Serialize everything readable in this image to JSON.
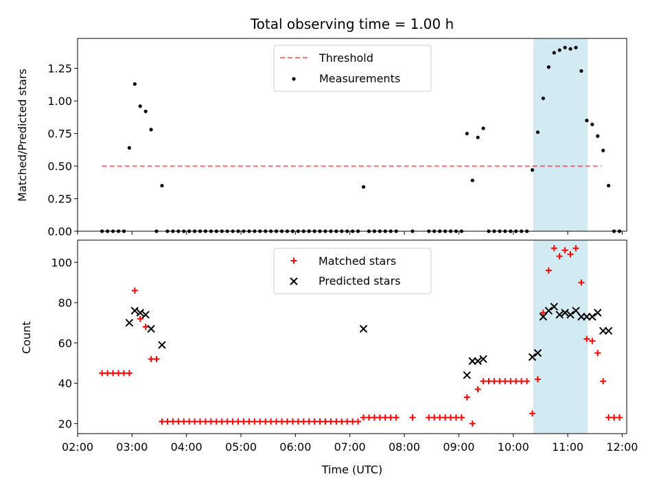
{
  "chart_data": [
    {
      "type": "scatter",
      "title": "Total observing time = 1.00 h",
      "xlabel": "",
      "ylabel": "Matched/Predicted stars",
      "xlim": [
        "02:00",
        "12:05"
      ],
      "ylim": [
        0,
        1.48
      ],
      "yticks": [
        "0.00",
        "0.25",
        "0.50",
        "0.75",
        "1.00",
        "1.25"
      ],
      "highlight_span": {
        "x": [
          "10:22",
          "11:22"
        ],
        "color": "#add8e6"
      },
      "threshold": {
        "name": "Threshold",
        "y": 0.5,
        "x": [
          "02:27",
          "11:37"
        ],
        "color": "#ff0000",
        "style": "dashed"
      },
      "series": [
        {
          "name": "Measurements",
          "color": "#000000",
          "marker": "dot",
          "points": [
            [
              "02:27",
              0
            ],
            [
              "02:33",
              0
            ],
            [
              "02:39",
              0
            ],
            [
              "02:45",
              0
            ],
            [
              "02:51",
              0
            ],
            [
              "02:57",
              0.64
            ],
            [
              "03:03",
              1.13
            ],
            [
              "03:09",
              0.96
            ],
            [
              "03:15",
              0.92
            ],
            [
              "03:21",
              0.78
            ],
            [
              "03:27",
              0
            ],
            [
              "03:33",
              0.35
            ],
            [
              "03:39",
              0
            ],
            [
              "03:45",
              0
            ],
            [
              "03:51",
              0
            ],
            [
              "03:57",
              0
            ],
            [
              "04:03",
              0
            ],
            [
              "04:09",
              0
            ],
            [
              "04:15",
              0
            ],
            [
              "04:21",
              0
            ],
            [
              "04:27",
              0
            ],
            [
              "04:33",
              0
            ],
            [
              "04:39",
              0
            ],
            [
              "04:45",
              0
            ],
            [
              "04:51",
              0
            ],
            [
              "04:57",
              0
            ],
            [
              "05:03",
              0
            ],
            [
              "05:09",
              0
            ],
            [
              "05:15",
              0
            ],
            [
              "05:21",
              0
            ],
            [
              "05:27",
              0
            ],
            [
              "05:33",
              0
            ],
            [
              "05:39",
              0
            ],
            [
              "05:45",
              0
            ],
            [
              "05:51",
              0
            ],
            [
              "05:57",
              0
            ],
            [
              "06:03",
              0
            ],
            [
              "06:09",
              0
            ],
            [
              "06:15",
              0
            ],
            [
              "06:21",
              0
            ],
            [
              "06:27",
              0
            ],
            [
              "06:33",
              0
            ],
            [
              "06:39",
              0
            ],
            [
              "06:45",
              0
            ],
            [
              "06:51",
              0
            ],
            [
              "06:57",
              0
            ],
            [
              "07:03",
              0
            ],
            [
              "07:09",
              0
            ],
            [
              "07:15",
              0.34
            ],
            [
              "07:21",
              0
            ],
            [
              "07:27",
              0
            ],
            [
              "07:33",
              0
            ],
            [
              "07:39",
              0
            ],
            [
              "07:45",
              0
            ],
            [
              "07:51",
              0
            ],
            [
              "08:09",
              0
            ],
            [
              "08:27",
              0
            ],
            [
              "08:33",
              0
            ],
            [
              "08:39",
              0
            ],
            [
              "08:45",
              0
            ],
            [
              "08:51",
              0
            ],
            [
              "08:57",
              0
            ],
            [
              "09:03",
              0
            ],
            [
              "09:09",
              0.75
            ],
            [
              "09:15",
              0.39
            ],
            [
              "09:21",
              0.72
            ],
            [
              "09:27",
              0.79
            ],
            [
              "09:33",
              0
            ],
            [
              "09:39",
              0
            ],
            [
              "09:45",
              0
            ],
            [
              "09:51",
              0
            ],
            [
              "09:57",
              0
            ],
            [
              "10:03",
              0
            ],
            [
              "10:09",
              0
            ],
            [
              "10:15",
              0
            ],
            [
              "10:21",
              0.47
            ],
            [
              "10:27",
              0.76
            ],
            [
              "10:33",
              1.02
            ],
            [
              "10:39",
              1.26
            ],
            [
              "10:45",
              1.37
            ],
            [
              "10:51",
              1.39
            ],
            [
              "10:57",
              1.41
            ],
            [
              "11:03",
              1.4
            ],
            [
              "11:09",
              1.41
            ],
            [
              "11:15",
              1.23
            ],
            [
              "11:21",
              0.85
            ],
            [
              "11:27",
              0.82
            ],
            [
              "11:33",
              0.73
            ],
            [
              "11:39",
              0.62
            ],
            [
              "11:45",
              0.35
            ],
            [
              "11:51",
              0
            ],
            [
              "11:57",
              0
            ]
          ]
        }
      ],
      "legend": {
        "placement": "upper center"
      }
    },
    {
      "type": "scatter",
      "title": "",
      "xlabel": "Time (UTC)",
      "ylabel": "Count",
      "xlim": [
        "02:00",
        "12:05"
      ],
      "ylim": [
        15,
        111
      ],
      "yticks": [
        "20",
        "40",
        "60",
        "80",
        "100"
      ],
      "xticks": [
        "02:00",
        "03:00",
        "04:00",
        "05:00",
        "06:00",
        "07:00",
        "08:00",
        "09:00",
        "10:00",
        "11:00",
        "12:00"
      ],
      "highlight_span": {
        "x": [
          "10:22",
          "11:22"
        ],
        "color": "#add8e6"
      },
      "series": [
        {
          "name": "Matched stars",
          "color": "#ff0000",
          "marker": "plus",
          "points": [
            [
              "02:27",
              45
            ],
            [
              "02:33",
              45
            ],
            [
              "02:39",
              45
            ],
            [
              "02:45",
              45
            ],
            [
              "02:51",
              45
            ],
            [
              "02:57",
              45
            ],
            [
              "03:03",
              86
            ],
            [
              "03:09",
              72
            ],
            [
              "03:15",
              68
            ],
            [
              "03:21",
              52
            ],
            [
              "03:27",
              52
            ],
            [
              "03:33",
              21
            ],
            [
              "03:39",
              21
            ],
            [
              "03:45",
              21
            ],
            [
              "03:51",
              21
            ],
            [
              "03:57",
              21
            ],
            [
              "04:03",
              21
            ],
            [
              "04:09",
              21
            ],
            [
              "04:15",
              21
            ],
            [
              "04:21",
              21
            ],
            [
              "04:27",
              21
            ],
            [
              "04:33",
              21
            ],
            [
              "04:39",
              21
            ],
            [
              "04:45",
              21
            ],
            [
              "04:51",
              21
            ],
            [
              "04:57",
              21
            ],
            [
              "05:03",
              21
            ],
            [
              "05:09",
              21
            ],
            [
              "05:15",
              21
            ],
            [
              "05:21",
              21
            ],
            [
              "05:27",
              21
            ],
            [
              "05:33",
              21
            ],
            [
              "05:39",
              21
            ],
            [
              "05:45",
              21
            ],
            [
              "05:51",
              21
            ],
            [
              "05:57",
              21
            ],
            [
              "06:03",
              21
            ],
            [
              "06:09",
              21
            ],
            [
              "06:15",
              21
            ],
            [
              "06:21",
              21
            ],
            [
              "06:27",
              21
            ],
            [
              "06:33",
              21
            ],
            [
              "06:39",
              21
            ],
            [
              "06:45",
              21
            ],
            [
              "06:51",
              21
            ],
            [
              "06:57",
              21
            ],
            [
              "07:03",
              21
            ],
            [
              "07:09",
              21
            ],
            [
              "07:15",
              23
            ],
            [
              "07:21",
              23
            ],
            [
              "07:27",
              23
            ],
            [
              "07:33",
              23
            ],
            [
              "07:39",
              23
            ],
            [
              "07:45",
              23
            ],
            [
              "07:51",
              23
            ],
            [
              "08:09",
              23
            ],
            [
              "08:27",
              23
            ],
            [
              "08:33",
              23
            ],
            [
              "08:39",
              23
            ],
            [
              "08:45",
              23
            ],
            [
              "08:51",
              23
            ],
            [
              "08:57",
              23
            ],
            [
              "09:03",
              23
            ],
            [
              "09:09",
              33
            ],
            [
              "09:15",
              20
            ],
            [
              "09:21",
              37
            ],
            [
              "09:27",
              41
            ],
            [
              "09:33",
              41
            ],
            [
              "09:39",
              41
            ],
            [
              "09:45",
              41
            ],
            [
              "09:51",
              41
            ],
            [
              "09:57",
              41
            ],
            [
              "10:03",
              41
            ],
            [
              "10:09",
              41
            ],
            [
              "10:15",
              41
            ],
            [
              "10:21",
              25
            ],
            [
              "10:27",
              42
            ],
            [
              "10:33",
              75
            ],
            [
              "10:39",
              96
            ],
            [
              "10:45",
              107
            ],
            [
              "10:51",
              103
            ],
            [
              "10:57",
              106
            ],
            [
              "11:03",
              104
            ],
            [
              "11:09",
              107
            ],
            [
              "11:15",
              90
            ],
            [
              "11:21",
              62
            ],
            [
              "11:27",
              61
            ],
            [
              "11:33",
              55
            ],
            [
              "11:39",
              41
            ],
            [
              "11:45",
              23
            ],
            [
              "11:51",
              23
            ],
            [
              "11:57",
              23
            ]
          ]
        },
        {
          "name": "Predicted stars",
          "color": "#000000",
          "marker": "cross",
          "points": [
            [
              "02:57",
              70
            ],
            [
              "03:03",
              76
            ],
            [
              "03:09",
              75
            ],
            [
              "03:15",
              74
            ],
            [
              "03:21",
              67
            ],
            [
              "03:33",
              59
            ],
            [
              "07:15",
              67
            ],
            [
              "09:09",
              44
            ],
            [
              "09:15",
              51
            ],
            [
              "09:21",
              51
            ],
            [
              "09:27",
              52
            ],
            [
              "10:21",
              53
            ],
            [
              "10:27",
              55
            ],
            [
              "10:33",
              73
            ],
            [
              "10:39",
              76
            ],
            [
              "10:45",
              78
            ],
            [
              "10:51",
              74
            ],
            [
              "10:57",
              75
            ],
            [
              "11:03",
              74
            ],
            [
              "11:09",
              76
            ],
            [
              "11:15",
              73
            ],
            [
              "11:21",
              73
            ],
            [
              "11:27",
              73
            ],
            [
              "11:33",
              75
            ],
            [
              "11:39",
              66
            ],
            [
              "11:45",
              66
            ]
          ]
        }
      ],
      "legend": {
        "placement": "upper center"
      }
    }
  ]
}
